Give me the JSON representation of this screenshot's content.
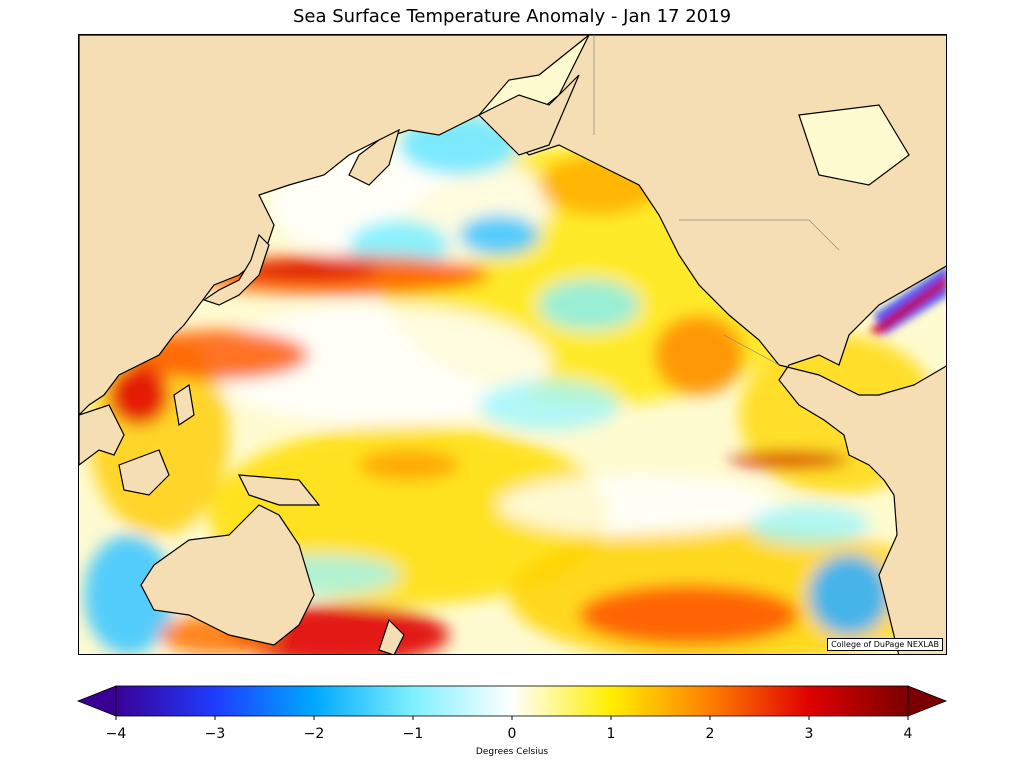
{
  "title": "Sea Surface Temperature Anomaly - Jan 17 2019",
  "credit": "College of DuPage NEXLAB",
  "colorbar": {
    "label": "Degrees Celsius",
    "min": -4,
    "max": 4,
    "ticks": [
      "−4",
      "−3",
      "−2",
      "−1",
      "0",
      "1",
      "2",
      "3",
      "4"
    ],
    "colors": {
      "land": "#f5deb3",
      "neg4": "#3a0096",
      "neg3": "#1f3cff",
      "neg2": "#00a8ff",
      "neg1": "#7ff0ff",
      "zero": "#ffffff",
      "pos1": "#ffee00",
      "pos2": "#ff7f00",
      "pos3": "#e00000",
      "pos4": "#7a0000"
    }
  }
}
